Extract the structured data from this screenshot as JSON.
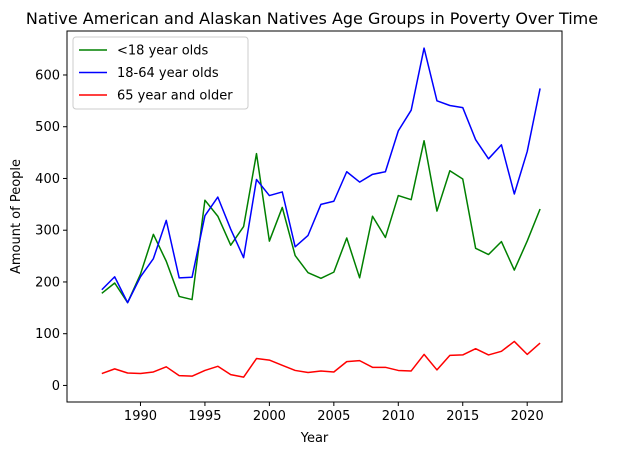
{
  "chart_data": {
    "type": "line",
    "title": "Native American and Alaskan Natives Age Groups in Poverty Over Time",
    "xlabel": "Year",
    "ylabel": "Amount of People",
    "xlim": [
      1984.3,
      2022.7
    ],
    "ylim": [
      -32,
      685
    ],
    "xticks": [
      1990,
      1995,
      2000,
      2005,
      2010,
      2015,
      2020
    ],
    "yticks": [
      0,
      100,
      200,
      300,
      400,
      500,
      600
    ],
    "grid": false,
    "legend": "upper-left",
    "x": [
      1987,
      1988,
      1989,
      1990,
      1991,
      1992,
      1993,
      1994,
      1995,
      1996,
      1997,
      1998,
      1999,
      2000,
      2001,
      2002,
      2003,
      2004,
      2005,
      2006,
      2007,
      2008,
      2009,
      2010,
      2011,
      2012,
      2013,
      2014,
      2015,
      2016,
      2017,
      2018,
      2019,
      2020,
      2021
    ],
    "series": [
      {
        "name": "<18 year olds",
        "color": "#008000",
        "values": [
          178,
          198,
          160,
          215,
          292,
          240,
          172,
          166,
          358,
          327,
          271,
          307,
          448,
          279,
          344,
          251,
          218,
          207,
          219,
          285,
          208,
          327,
          286,
          367,
          359,
          473,
          337,
          415,
          399,
          265,
          253,
          278,
          223,
          279,
          341
        ]
      },
      {
        "name": "18-64 year olds",
        "color": "#0000ff",
        "values": [
          185,
          210,
          160,
          210,
          245,
          319,
          208,
          209,
          328,
          364,
          302,
          247,
          398,
          367,
          374,
          268,
          290,
          350,
          356,
          413,
          393,
          408,
          413,
          492,
          532,
          652,
          550,
          541,
          537,
          475,
          438,
          465,
          370,
          452,
          574
        ]
      },
      {
        "name": "65 year and older",
        "color": "#ff0000",
        "values": [
          23,
          32,
          24,
          23,
          26,
          36,
          19,
          18,
          29,
          37,
          21,
          16,
          52,
          49,
          39,
          29,
          25,
          28,
          26,
          46,
          48,
          35,
          35,
          29,
          28,
          60,
          30,
          58,
          59,
          71,
          59,
          66,
          85,
          60,
          82
        ]
      }
    ]
  }
}
